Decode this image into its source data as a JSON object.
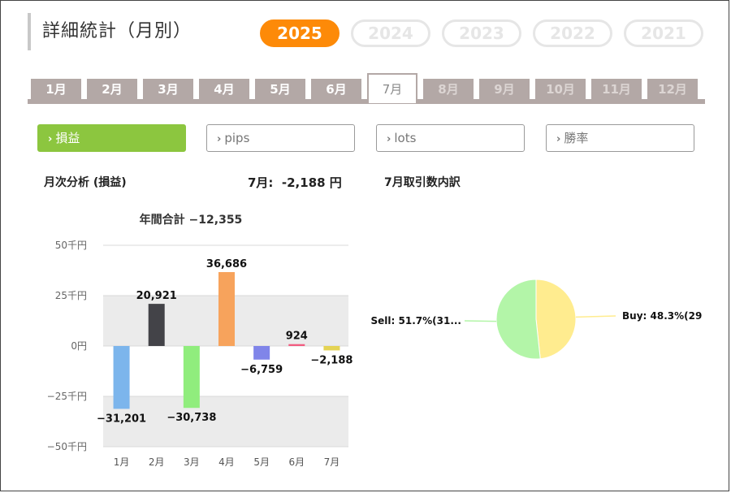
{
  "header": {
    "title": "詳細統計（月別）"
  },
  "years": [
    {
      "label": "2025",
      "active": true
    },
    {
      "label": "2024",
      "active": false
    },
    {
      "label": "2023",
      "active": false
    },
    {
      "label": "2022",
      "active": false
    },
    {
      "label": "2021",
      "active": false
    }
  ],
  "months": [
    {
      "label": "1月",
      "state": "normal"
    },
    {
      "label": "2月",
      "state": "normal"
    },
    {
      "label": "3月",
      "state": "normal"
    },
    {
      "label": "4月",
      "state": "normal"
    },
    {
      "label": "5月",
      "state": "normal"
    },
    {
      "label": "6月",
      "state": "normal"
    },
    {
      "label": "7月",
      "state": "active"
    },
    {
      "label": "8月",
      "state": "future"
    },
    {
      "label": "9月",
      "state": "future"
    },
    {
      "label": "10月",
      "state": "future"
    },
    {
      "label": "11月",
      "state": "future"
    },
    {
      "label": "12月",
      "state": "future"
    }
  ],
  "metrics": [
    {
      "label": "損益",
      "active": true
    },
    {
      "label": "pips",
      "active": false
    },
    {
      "label": "lots",
      "active": false
    },
    {
      "label": "勝率",
      "active": false
    }
  ],
  "monthly": {
    "section_label": "月次分析 (損益)",
    "month_value_label": "7月:",
    "month_value": "-2,188",
    "month_value_unit": "円"
  },
  "breakdown": {
    "section_label": "7月取引数内訳"
  },
  "colors": {
    "accent_orange": "#fd8a08",
    "metric_green": "#8cc63f",
    "tab_gray": "#b3a8a6"
  },
  "chart_data": [
    {
      "type": "bar",
      "title": "年間合計 −12,355",
      "categories": [
        "1月",
        "2月",
        "3月",
        "4月",
        "5月",
        "6月",
        "7月"
      ],
      "values": [
        -31201,
        20921,
        -30738,
        36686,
        -6759,
        924,
        -2188
      ],
      "value_labels": [
        "−31,201",
        "20,921",
        "−30,738",
        "36,686",
        "−6,759",
        "924",
        "−2,188"
      ],
      "bar_colors": [
        "#7cb5ec",
        "#434348",
        "#90ed7d",
        "#f7a35c",
        "#8085e9",
        "#f15c80",
        "#e4d354"
      ],
      "yticks": [
        50000,
        25000,
        0,
        -25000,
        -50000
      ],
      "ytick_labels": [
        "50千円",
        "25千円",
        "0円",
        "−25千円",
        "−50千円"
      ],
      "ylim": [
        -50000,
        50000
      ],
      "xlabel": "",
      "ylabel": "",
      "grid": true
    },
    {
      "type": "pie",
      "slices": [
        {
          "label": "Buy: 48.3%(29",
          "value": 48.3,
          "color": "#ffec8f"
        },
        {
          "label": "Sell: 51.7%(31...",
          "value": 51.7,
          "color": "#b3f5a8"
        }
      ]
    }
  ]
}
